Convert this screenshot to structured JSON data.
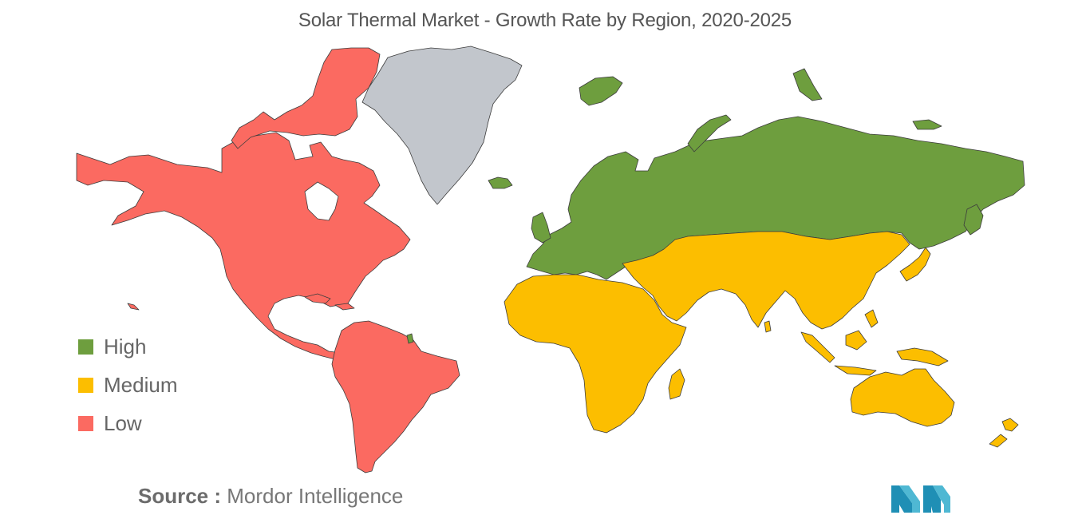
{
  "title": "Solar Thermal Market - Growth Rate by Region, 2020-2025",
  "legend": [
    {
      "label": "High",
      "color": "#6e9e3e"
    },
    {
      "label": "Medium",
      "color": "#fcbe00"
    },
    {
      "label": "Low",
      "color": "#fb6a61"
    }
  ],
  "no_data_color": "#c2c6cc",
  "regions": [
    {
      "name": "North America",
      "category": "Low"
    },
    {
      "name": "South America",
      "category": "Low"
    },
    {
      "name": "Greenland",
      "category": "No data"
    },
    {
      "name": "Europe",
      "category": "High"
    },
    {
      "name": "Russia",
      "category": "High"
    },
    {
      "name": "Africa",
      "category": "Medium"
    },
    {
      "name": "Middle East",
      "category": "Medium"
    },
    {
      "name": "Asia",
      "category": "Medium"
    },
    {
      "name": "Oceania",
      "category": "Medium"
    }
  ],
  "source": {
    "label": "Source :",
    "text": "Mordor Intelligence"
  },
  "logo_icon": "mordor-intelligence-logo-icon"
}
